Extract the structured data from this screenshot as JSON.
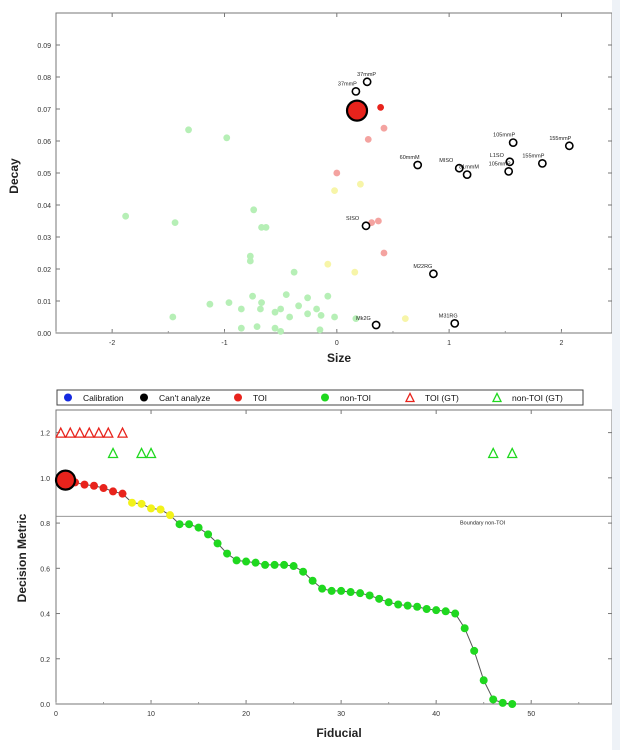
{
  "colors": {
    "toi": "#e8231c",
    "toi_light": "#f4a3a0",
    "nontoi": "#1fd81f",
    "nontoi_light": "#b6efb6",
    "yellow": "#f2f21a",
    "yellow_light": "#f7f5a8",
    "calibration": "#1429e0",
    "cant_analyze": "#000000",
    "axis": "#555555"
  },
  "chart_data": [
    {
      "type": "scatter",
      "title": "",
      "xlabel": "Size",
      "ylabel": "Decay",
      "xlim": [
        -2.5,
        2.45
      ],
      "ylim": [
        0,
        0.1
      ],
      "xticks": [
        "-2",
        "-1",
        "0",
        "1",
        "2"
      ],
      "yticks": [
        "0.00",
        "0.01",
        "0.02",
        "0.03",
        "0.04",
        "0.05",
        "0.06",
        "0.07",
        "0.08",
        "0.09"
      ],
      "grid": false,
      "big_marker": {
        "x": 0.18,
        "y": 0.0695
      },
      "hollow_points": [
        {
          "x": 0.27,
          "y": 0.0785,
          "label": "37mmP"
        },
        {
          "x": 0.17,
          "y": 0.0755,
          "label": "37mmP"
        },
        {
          "x": 1.57,
          "y": 0.0595,
          "label": "105mmP"
        },
        {
          "x": 2.07,
          "y": 0.0585,
          "label": "155mmP"
        },
        {
          "x": 1.54,
          "y": 0.0535,
          "label": "L1SO"
        },
        {
          "x": 1.53,
          "y": 0.0505,
          "label": "105mmP"
        },
        {
          "x": 1.83,
          "y": 0.053,
          "label": "155mmP"
        },
        {
          "x": 0.72,
          "y": 0.0525,
          "label": "60mmM"
        },
        {
          "x": 1.09,
          "y": 0.0515,
          "label": "MISO"
        },
        {
          "x": 1.16,
          "y": 0.0495,
          "label": "81mmM"
        },
        {
          "x": 0.26,
          "y": 0.0335,
          "label": "SISO"
        },
        {
          "x": 0.86,
          "y": 0.0185,
          "label": "M22RG"
        },
        {
          "x": 1.05,
          "y": 0.003,
          "label": "M31RG"
        },
        {
          "x": 0.35,
          "y": 0.0025,
          "label": "Mk2G"
        }
      ],
      "filled_points": [
        {
          "x": 0.39,
          "y": 0.0705,
          "kind": "toi"
        },
        {
          "x": 0.42,
          "y": 0.064,
          "kind": "toi_light"
        },
        {
          "x": 0.28,
          "y": 0.0605,
          "kind": "toi_light"
        },
        {
          "x": 0.0,
          "y": 0.05,
          "kind": "toi_light"
        },
        {
          "x": 0.31,
          "y": 0.0345,
          "kind": "toi_light"
        },
        {
          "x": 0.37,
          "y": 0.035,
          "kind": "toi_light"
        },
        {
          "x": 0.42,
          "y": 0.025,
          "kind": "toi_light"
        },
        {
          "x": 0.21,
          "y": 0.0465,
          "kind": "yellow_light"
        },
        {
          "x": -0.02,
          "y": 0.0445,
          "kind": "yellow_light"
        },
        {
          "x": -0.08,
          "y": 0.0215,
          "kind": "yellow_light"
        },
        {
          "x": 0.16,
          "y": 0.019,
          "kind": "yellow_light"
        },
        {
          "x": 0.61,
          "y": 0.0045,
          "kind": "yellow_light"
        },
        {
          "x": -1.32,
          "y": 0.0635,
          "kind": "nontoi_light"
        },
        {
          "x": -0.98,
          "y": 0.061,
          "kind": "nontoi_light"
        },
        {
          "x": -1.88,
          "y": 0.0365,
          "kind": "nontoi_light"
        },
        {
          "x": -1.44,
          "y": 0.0345,
          "kind": "nontoi_light"
        },
        {
          "x": -0.74,
          "y": 0.0385,
          "kind": "nontoi_light"
        },
        {
          "x": -0.67,
          "y": 0.033,
          "kind": "nontoi_light"
        },
        {
          "x": -0.63,
          "y": 0.033,
          "kind": "nontoi_light"
        },
        {
          "x": -0.77,
          "y": 0.024,
          "kind": "nontoi_light"
        },
        {
          "x": -0.77,
          "y": 0.0225,
          "kind": "nontoi_light"
        },
        {
          "x": -0.38,
          "y": 0.019,
          "kind": "nontoi_light"
        },
        {
          "x": -1.46,
          "y": 0.005,
          "kind": "nontoi_light"
        },
        {
          "x": -1.13,
          "y": 0.009,
          "kind": "nontoi_light"
        },
        {
          "x": -0.96,
          "y": 0.0095,
          "kind": "nontoi_light"
        },
        {
          "x": -0.75,
          "y": 0.0115,
          "kind": "nontoi_light"
        },
        {
          "x": -0.67,
          "y": 0.0095,
          "kind": "nontoi_light"
        },
        {
          "x": -0.45,
          "y": 0.012,
          "kind": "nontoi_light"
        },
        {
          "x": -0.26,
          "y": 0.011,
          "kind": "nontoi_light"
        },
        {
          "x": -0.08,
          "y": 0.0115,
          "kind": "nontoi_light"
        },
        {
          "x": -0.85,
          "y": 0.0075,
          "kind": "nontoi_light"
        },
        {
          "x": -0.68,
          "y": 0.0075,
          "kind": "nontoi_light"
        },
        {
          "x": -0.5,
          "y": 0.0075,
          "kind": "nontoi_light"
        },
        {
          "x": -0.34,
          "y": 0.0085,
          "kind": "nontoi_light"
        },
        {
          "x": -0.18,
          "y": 0.0075,
          "kind": "nontoi_light"
        },
        {
          "x": -0.55,
          "y": 0.0065,
          "kind": "nontoi_light"
        },
        {
          "x": -0.42,
          "y": 0.005,
          "kind": "nontoi_light"
        },
        {
          "x": -0.26,
          "y": 0.006,
          "kind": "nontoi_light"
        },
        {
          "x": -0.14,
          "y": 0.0055,
          "kind": "nontoi_light"
        },
        {
          "x": -0.85,
          "y": 0.0015,
          "kind": "nontoi_light"
        },
        {
          "x": -0.71,
          "y": 0.002,
          "kind": "nontoi_light"
        },
        {
          "x": -0.55,
          "y": 0.0015,
          "kind": "nontoi_light"
        },
        {
          "x": -0.5,
          "y": 0.0005,
          "kind": "nontoi_light"
        },
        {
          "x": -0.15,
          "y": 0.001,
          "kind": "nontoi_light"
        },
        {
          "x": -0.02,
          "y": 0.005,
          "kind": "nontoi_light"
        },
        {
          "x": 0.17,
          "y": 0.0045,
          "kind": "nontoi_light"
        }
      ]
    },
    {
      "type": "line",
      "title": "",
      "xlabel": "Fiducial",
      "ylabel": "Decision Metric",
      "xlim": [
        0,
        58.5
      ],
      "ylim": [
        0,
        1.3
      ],
      "xticks": [
        "0",
        "10",
        "20",
        "30",
        "40",
        "50"
      ],
      "yticks": [
        "0.0",
        "0.2",
        "0.4",
        "0.6",
        "0.8",
        "1.0",
        "1.2"
      ],
      "grid": false,
      "legend_position": "top",
      "legend": [
        {
          "label": "Calibration",
          "symbol": "dot",
          "color": "calibration"
        },
        {
          "label": "Can't analyze",
          "symbol": "dot",
          "color": "cant_analyze"
        },
        {
          "label": "TOI",
          "symbol": "dot",
          "color": "toi"
        },
        {
          "label": "non-TOI",
          "symbol": "dot",
          "color": "nontoi"
        },
        {
          "label": "TOI (GT)",
          "symbol": "triangle",
          "color": "toi"
        },
        {
          "label": "non-TOI (GT)",
          "symbol": "triangle",
          "color": "nontoi"
        }
      ],
      "boundary": {
        "y": 0.83,
        "label": "Boundary non-TOI"
      },
      "big_marker": {
        "x": 1,
        "y": 0.99
      },
      "points": [
        {
          "x": 1,
          "y": 0.99,
          "c": "toi"
        },
        {
          "x": 2,
          "y": 0.98,
          "c": "toi"
        },
        {
          "x": 3,
          "y": 0.97,
          "c": "toi"
        },
        {
          "x": 4,
          "y": 0.965,
          "c": "toi"
        },
        {
          "x": 5,
          "y": 0.955,
          "c": "toi"
        },
        {
          "x": 6,
          "y": 0.94,
          "c": "toi"
        },
        {
          "x": 7,
          "y": 0.93,
          "c": "toi"
        },
        {
          "x": 8,
          "y": 0.89,
          "c": "yellow"
        },
        {
          "x": 9,
          "y": 0.885,
          "c": "yellow"
        },
        {
          "x": 10,
          "y": 0.865,
          "c": "yellow"
        },
        {
          "x": 11,
          "y": 0.86,
          "c": "yellow"
        },
        {
          "x": 12,
          "y": 0.835,
          "c": "yellow"
        },
        {
          "x": 13,
          "y": 0.795,
          "c": "nontoi"
        },
        {
          "x": 14,
          "y": 0.795,
          "c": "nontoi"
        },
        {
          "x": 15,
          "y": 0.78,
          "c": "nontoi"
        },
        {
          "x": 16,
          "y": 0.75,
          "c": "nontoi"
        },
        {
          "x": 17,
          "y": 0.71,
          "c": "nontoi"
        },
        {
          "x": 18,
          "y": 0.665,
          "c": "nontoi"
        },
        {
          "x": 19,
          "y": 0.635,
          "c": "nontoi"
        },
        {
          "x": 20,
          "y": 0.63,
          "c": "nontoi"
        },
        {
          "x": 21,
          "y": 0.625,
          "c": "nontoi"
        },
        {
          "x": 22,
          "y": 0.615,
          "c": "nontoi"
        },
        {
          "x": 23,
          "y": 0.615,
          "c": "nontoi"
        },
        {
          "x": 24,
          "y": 0.615,
          "c": "nontoi"
        },
        {
          "x": 25,
          "y": 0.61,
          "c": "nontoi"
        },
        {
          "x": 26,
          "y": 0.585,
          "c": "nontoi"
        },
        {
          "x": 27,
          "y": 0.545,
          "c": "nontoi"
        },
        {
          "x": 28,
          "y": 0.51,
          "c": "nontoi"
        },
        {
          "x": 29,
          "y": 0.5,
          "c": "nontoi"
        },
        {
          "x": 30,
          "y": 0.5,
          "c": "nontoi"
        },
        {
          "x": 31,
          "y": 0.495,
          "c": "nontoi"
        },
        {
          "x": 32,
          "y": 0.49,
          "c": "nontoi"
        },
        {
          "x": 33,
          "y": 0.48,
          "c": "nontoi"
        },
        {
          "x": 34,
          "y": 0.465,
          "c": "nontoi"
        },
        {
          "x": 35,
          "y": 0.45,
          "c": "nontoi"
        },
        {
          "x": 36,
          "y": 0.44,
          "c": "nontoi"
        },
        {
          "x": 37,
          "y": 0.435,
          "c": "nontoi"
        },
        {
          "x": 38,
          "y": 0.43,
          "c": "nontoi"
        },
        {
          "x": 39,
          "y": 0.42,
          "c": "nontoi"
        },
        {
          "x": 40,
          "y": 0.415,
          "c": "nontoi"
        },
        {
          "x": 41,
          "y": 0.41,
          "c": "nontoi"
        },
        {
          "x": 42,
          "y": 0.4,
          "c": "nontoi"
        },
        {
          "x": 43,
          "y": 0.335,
          "c": "nontoi"
        },
        {
          "x": 44,
          "y": 0.235,
          "c": "nontoi"
        },
        {
          "x": 45,
          "y": 0.105,
          "c": "nontoi"
        },
        {
          "x": 46,
          "y": 0.02,
          "c": "nontoi"
        },
        {
          "x": 47,
          "y": 0.005,
          "c": "nontoi"
        },
        {
          "x": 48,
          "y": 0.0,
          "c": "nontoi"
        }
      ],
      "gt_toi": [
        {
          "x": 0.5,
          "y": 1.2
        },
        {
          "x": 1.5,
          "y": 1.2
        },
        {
          "x": 2.5,
          "y": 1.2
        },
        {
          "x": 3.5,
          "y": 1.2
        },
        {
          "x": 4.5,
          "y": 1.2
        },
        {
          "x": 5.5,
          "y": 1.2
        },
        {
          "x": 7.0,
          "y": 1.2
        }
      ],
      "gt_nontoi": [
        {
          "x": 6.0,
          "y": 1.11
        },
        {
          "x": 9.0,
          "y": 1.11
        },
        {
          "x": 10.0,
          "y": 1.11
        },
        {
          "x": 46.0,
          "y": 1.11
        },
        {
          "x": 48.0,
          "y": 1.11
        }
      ]
    }
  ]
}
